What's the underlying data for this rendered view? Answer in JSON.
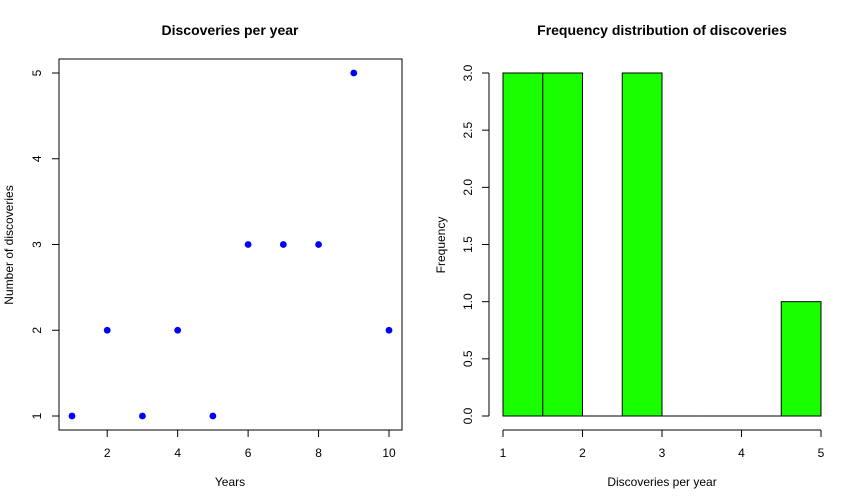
{
  "chart_data": [
    {
      "type": "scatter",
      "title": "Discoveries per year",
      "xlabel": "Years",
      "ylabel": "Number of discoveries",
      "x": [
        1,
        2,
        3,
        4,
        5,
        6,
        7,
        8,
        9,
        10
      ],
      "y": [
        1,
        2,
        1,
        2,
        1,
        3,
        3,
        3,
        5,
        2
      ],
      "xlim": [
        1,
        10
      ],
      "ylim": [
        1,
        5
      ],
      "xticks": [
        "2",
        "4",
        "6",
        "8",
        "10"
      ],
      "yticks": [
        "1",
        "2",
        "3",
        "4",
        "5"
      ],
      "point_color": "#0000ff",
      "grid": false
    },
    {
      "type": "bar",
      "title": "Frequency distribution of discoveries",
      "xlabel": "Discoveries per year",
      "ylabel": "Frequency",
      "bins": [
        [
          1,
          1.5
        ],
        [
          1.5,
          2
        ],
        [
          2,
          2.5
        ],
        [
          2.5,
          3
        ],
        [
          3,
          3.5
        ],
        [
          3.5,
          4
        ],
        [
          4,
          4.5
        ],
        [
          4.5,
          5
        ]
      ],
      "values": [
        3,
        3,
        0,
        3,
        0,
        0,
        0,
        1
      ],
      "xlim": [
        1,
        5
      ],
      "ylim": [
        0,
        3
      ],
      "xticks": [
        "1",
        "2",
        "3",
        "4",
        "5"
      ],
      "yticks": [
        "0.0",
        "0.5",
        "1.0",
        "1.5",
        "2.0",
        "2.5",
        "3.0"
      ],
      "bar_color": "#1aff00",
      "grid": false
    }
  ]
}
